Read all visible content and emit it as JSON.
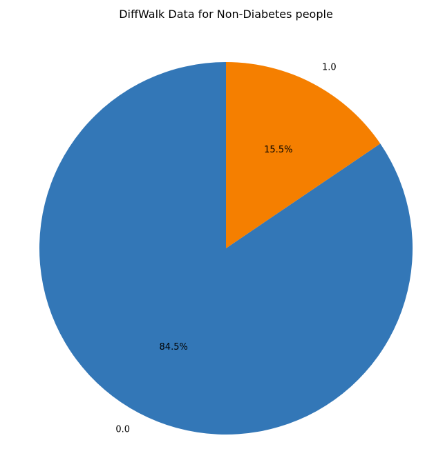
{
  "chart_data": {
    "type": "pie",
    "title": "DiffWalk Data for Non-Diabetes people",
    "slices": [
      {
        "label": "0.0",
        "value": 84.5,
        "pct_label": "84.5%",
        "color": "#3377b7"
      },
      {
        "label": "1.0",
        "value": 15.5,
        "pct_label": "15.5%",
        "color": "#f57f00"
      }
    ],
    "start_angle_deg": 90,
    "counterclockwise": true,
    "legend": "none"
  }
}
